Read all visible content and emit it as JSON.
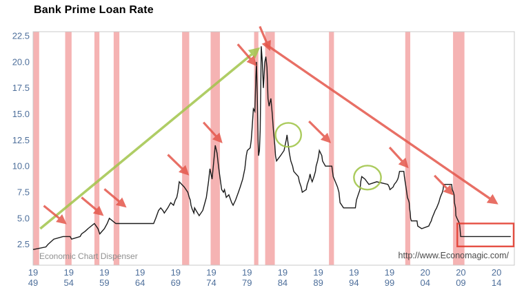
{
  "title": "Bank Prime Loan Rate",
  "footer": {
    "left": "Economic Chart Dispenser",
    "right": "http://www.Economagic.com/"
  },
  "colors": {
    "line": "#1a1a1a",
    "recession_band": "#f5b3b3",
    "plot_border": "#c9c9c9",
    "axis_label": "#4e6f9b",
    "watermark": "#8f8f8f",
    "url_text": "#4a4a4a",
    "green_annotation": "#a2c54b",
    "red_annotation": "#e4574b",
    "red_box": "#e23b2e",
    "background": "#ffffff"
  },
  "chart_data": {
    "type": "line",
    "title": "Bank Prime Loan Rate",
    "xlabel": "",
    "ylabel": "",
    "grid": false,
    "legend": "none",
    "xlim": [
      1949,
      2016.5
    ],
    "ylim": [
      0.5,
      22.9
    ],
    "yticks": [
      2.5,
      5.0,
      7.5,
      10.0,
      12.5,
      15.0,
      17.5,
      20.0,
      22.5
    ],
    "xticks": [
      {
        "x": 1949,
        "top": "19",
        "bottom": "49"
      },
      {
        "x": 1954,
        "top": "19",
        "bottom": "54"
      },
      {
        "x": 1959,
        "top": "19",
        "bottom": "59"
      },
      {
        "x": 1964,
        "top": "19",
        "bottom": "64"
      },
      {
        "x": 1969,
        "top": "19",
        "bottom": "69"
      },
      {
        "x": 1974,
        "top": "19",
        "bottom": "74"
      },
      {
        "x": 1979,
        "top": "19",
        "bottom": "79"
      },
      {
        "x": 1984,
        "top": "19",
        "bottom": "84"
      },
      {
        "x": 1989,
        "top": "19",
        "bottom": "89"
      },
      {
        "x": 1994,
        "top": "19",
        "bottom": "94"
      },
      {
        "x": 1999,
        "top": "19",
        "bottom": "99"
      },
      {
        "x": 2004,
        "top": "20",
        "bottom": "04"
      },
      {
        "x": 2009,
        "top": "20",
        "bottom": "09"
      },
      {
        "x": 2014,
        "top": "20",
        "bottom": "14"
      }
    ],
    "recessions": [
      [
        1949.0,
        1949.85
      ],
      [
        1953.5,
        1954.4
      ],
      [
        1957.6,
        1958.3
      ],
      [
        1960.3,
        1961.1
      ],
      [
        1969.9,
        1970.9
      ],
      [
        1973.9,
        1975.2
      ],
      [
        1980.0,
        1980.6
      ],
      [
        1981.55,
        1982.9
      ],
      [
        1990.5,
        1991.2
      ],
      [
        2001.2,
        2001.9
      ],
      [
        2007.9,
        2009.5
      ]
    ],
    "series": [
      {
        "name": "Bank Prime Loan Rate (percent)",
        "points": [
          [
            1949.0,
            2.0
          ],
          [
            1950.8,
            2.25
          ],
          [
            1951.1,
            2.5
          ],
          [
            1951.9,
            3.0
          ],
          [
            1953.2,
            3.25
          ],
          [
            1954.2,
            3.25
          ],
          [
            1954.4,
            3.0
          ],
          [
            1955.6,
            3.25
          ],
          [
            1955.8,
            3.5
          ],
          [
            1956.3,
            3.75
          ],
          [
            1956.7,
            4.0
          ],
          [
            1957.6,
            4.5
          ],
          [
            1958.1,
            4.0
          ],
          [
            1958.35,
            3.5
          ],
          [
            1959.0,
            4.0
          ],
          [
            1959.4,
            4.5
          ],
          [
            1959.7,
            5.0
          ],
          [
            1960.6,
            4.5
          ],
          [
            1965.9,
            4.5
          ],
          [
            1966.2,
            5.0
          ],
          [
            1966.6,
            5.75
          ],
          [
            1966.9,
            6.0
          ],
          [
            1967.2,
            5.75
          ],
          [
            1967.4,
            5.5
          ],
          [
            1967.9,
            6.0
          ],
          [
            1968.3,
            6.5
          ],
          [
            1968.7,
            6.25
          ],
          [
            1968.95,
            6.75
          ],
          [
            1969.15,
            7.0
          ],
          [
            1969.3,
            7.5
          ],
          [
            1969.5,
            8.5
          ],
          [
            1970.2,
            8.0
          ],
          [
            1970.7,
            7.5
          ],
          [
            1970.9,
            7.0
          ],
          [
            1971.05,
            6.75
          ],
          [
            1971.15,
            6.25
          ],
          [
            1971.3,
            5.9
          ],
          [
            1971.55,
            5.5
          ],
          [
            1971.65,
            6.0
          ],
          [
            1971.85,
            5.75
          ],
          [
            1972.3,
            5.25
          ],
          [
            1972.8,
            5.75
          ],
          [
            1973.0,
            6.25
          ],
          [
            1973.3,
            7.0
          ],
          [
            1973.6,
            8.5
          ],
          [
            1973.8,
            9.75
          ],
          [
            1974.1,
            8.75
          ],
          [
            1974.55,
            12.0
          ],
          [
            1974.8,
            11.25
          ],
          [
            1975.0,
            10.0
          ],
          [
            1975.2,
            9.0
          ],
          [
            1975.45,
            7.75
          ],
          [
            1975.7,
            7.5
          ],
          [
            1975.85,
            7.75
          ],
          [
            1976.1,
            7.0
          ],
          [
            1976.45,
            7.25
          ],
          [
            1976.85,
            6.5
          ],
          [
            1977.05,
            6.25
          ],
          [
            1977.4,
            6.75
          ],
          [
            1977.8,
            7.5
          ],
          [
            1978.05,
            8.0
          ],
          [
            1978.4,
            8.75
          ],
          [
            1978.7,
            9.75
          ],
          [
            1978.9,
            11.0
          ],
          [
            1979.05,
            11.5
          ],
          [
            1979.45,
            11.75
          ],
          [
            1979.6,
            12.5
          ],
          [
            1979.7,
            13.5
          ],
          [
            1979.8,
            14.5
          ],
          [
            1979.9,
            15.5
          ],
          [
            1980.1,
            15.25
          ],
          [
            1980.25,
            18.5
          ],
          [
            1980.33,
            20.0
          ],
          [
            1980.45,
            16.5
          ],
          [
            1980.55,
            12.5
          ],
          [
            1980.62,
            11.0
          ],
          [
            1980.75,
            11.5
          ],
          [
            1980.85,
            13.5
          ],
          [
            1980.92,
            17.0
          ],
          [
            1981.0,
            21.5
          ],
          [
            1981.15,
            20.0
          ],
          [
            1981.3,
            17.5
          ],
          [
            1981.5,
            20.0
          ],
          [
            1981.65,
            20.5
          ],
          [
            1981.8,
            19.5
          ],
          [
            1981.95,
            16.5
          ],
          [
            1982.1,
            15.75
          ],
          [
            1982.35,
            16.5
          ],
          [
            1982.55,
            15.0
          ],
          [
            1982.7,
            13.5
          ],
          [
            1982.9,
            12.0
          ],
          [
            1983.0,
            11.0
          ],
          [
            1983.15,
            10.5
          ],
          [
            1983.7,
            11.0
          ],
          [
            1984.2,
            11.5
          ],
          [
            1984.35,
            12.0
          ],
          [
            1984.5,
            12.5
          ],
          [
            1984.62,
            13.0
          ],
          [
            1984.8,
            12.0
          ],
          [
            1984.95,
            11.25
          ],
          [
            1985.15,
            10.5
          ],
          [
            1985.4,
            10.0
          ],
          [
            1985.55,
            9.5
          ],
          [
            1986.2,
            9.0
          ],
          [
            1986.35,
            8.5
          ],
          [
            1986.6,
            8.0
          ],
          [
            1986.75,
            7.5
          ],
          [
            1987.3,
            7.75
          ],
          [
            1987.45,
            8.25
          ],
          [
            1987.7,
            8.75
          ],
          [
            1987.85,
            9.25
          ],
          [
            1988.0,
            8.75
          ],
          [
            1988.15,
            8.5
          ],
          [
            1988.4,
            9.0
          ],
          [
            1988.6,
            9.5
          ],
          [
            1988.7,
            10.0
          ],
          [
            1988.9,
            10.5
          ],
          [
            1989.05,
            11.0
          ],
          [
            1989.15,
            11.5
          ],
          [
            1989.5,
            11.0
          ],
          [
            1989.6,
            10.5
          ],
          [
            1990.0,
            10.0
          ],
          [
            1990.9,
            10.0
          ],
          [
            1991.0,
            9.5
          ],
          [
            1991.1,
            9.0
          ],
          [
            1991.4,
            8.5
          ],
          [
            1991.7,
            8.0
          ],
          [
            1991.9,
            7.5
          ],
          [
            1992.05,
            6.5
          ],
          [
            1992.55,
            6.0
          ],
          [
            1994.2,
            6.0
          ],
          [
            1994.35,
            6.75
          ],
          [
            1994.6,
            7.25
          ],
          [
            1994.85,
            7.75
          ],
          [
            1994.95,
            8.5
          ],
          [
            1995.1,
            9.0
          ],
          [
            1995.55,
            8.75
          ],
          [
            1996.1,
            8.25
          ],
          [
            1997.2,
            8.5
          ],
          [
            1998.75,
            8.25
          ],
          [
            1998.95,
            8.0
          ],
          [
            1999.05,
            7.75
          ],
          [
            1999.5,
            8.0
          ],
          [
            1999.65,
            8.25
          ],
          [
            1999.95,
            8.5
          ],
          [
            2000.15,
            8.75
          ],
          [
            2000.25,
            9.0
          ],
          [
            2000.4,
            9.5
          ],
          [
            2001.0,
            9.5
          ],
          [
            2001.08,
            9.0
          ],
          [
            2001.18,
            8.5
          ],
          [
            2001.3,
            8.0
          ],
          [
            2001.4,
            7.5
          ],
          [
            2001.5,
            7.0
          ],
          [
            2001.65,
            6.75
          ],
          [
            2001.75,
            6.5
          ],
          [
            2001.8,
            6.0
          ],
          [
            2001.9,
            5.5
          ],
          [
            2001.95,
            5.0
          ],
          [
            2002.05,
            4.75
          ],
          [
            2002.85,
            4.75
          ],
          [
            2002.95,
            4.25
          ],
          [
            2003.5,
            4.0
          ],
          [
            2004.5,
            4.25
          ],
          [
            2004.65,
            4.5
          ],
          [
            2004.85,
            4.75
          ],
          [
            2004.95,
            5.0
          ],
          [
            2005.1,
            5.25
          ],
          [
            2005.25,
            5.5
          ],
          [
            2005.4,
            5.75
          ],
          [
            2005.6,
            6.0
          ],
          [
            2005.75,
            6.25
          ],
          [
            2005.9,
            6.5
          ],
          [
            2006.0,
            6.75
          ],
          [
            2006.1,
            7.0
          ],
          [
            2006.25,
            7.25
          ],
          [
            2006.4,
            7.5
          ],
          [
            2006.5,
            7.75
          ],
          [
            2006.55,
            8.0
          ],
          [
            2006.6,
            8.25
          ],
          [
            2007.7,
            8.25
          ],
          [
            2007.8,
            7.75
          ],
          [
            2007.95,
            7.5
          ],
          [
            2008.05,
            7.25
          ],
          [
            2008.1,
            6.5
          ],
          [
            2008.25,
            6.0
          ],
          [
            2008.3,
            5.25
          ],
          [
            2008.45,
            5.0
          ],
          [
            2008.8,
            4.5
          ],
          [
            2008.88,
            4.0
          ],
          [
            2008.97,
            3.25
          ],
          [
            2016.0,
            3.25
          ]
        ]
      }
    ],
    "annotations": {
      "trend_up_arrow": {
        "from": [
          1950.0,
          4.0
        ],
        "to": [
          1980.5,
          21.2
        ]
      },
      "trend_down_arrow": {
        "from": [
          1981.6,
          21.7
        ],
        "to": [
          2013.9,
          6.5
        ]
      },
      "peak_arrows": [
        [
          [
            1950.5,
            6.2
          ],
          [
            1953.4,
            4.6
          ]
        ],
        [
          [
            1955.8,
            7.0
          ],
          [
            1958.6,
            5.4
          ]
        ],
        [
          [
            1959.0,
            7.8
          ],
          [
            1961.8,
            6.2
          ]
        ],
        [
          [
            1967.9,
            11.1
          ],
          [
            1970.6,
            9.3
          ]
        ],
        [
          [
            1972.9,
            14.2
          ],
          [
            1975.3,
            12.4
          ]
        ],
        [
          [
            1977.7,
            21.7
          ],
          [
            1980.1,
            19.8
          ]
        ],
        [
          [
            1980.8,
            23.4
          ],
          [
            1982.1,
            21.3
          ]
        ],
        [
          [
            1987.7,
            14.3
          ],
          [
            1990.5,
            12.4
          ]
        ],
        [
          [
            1999.0,
            11.8
          ],
          [
            2001.4,
            10.0
          ]
        ],
        [
          [
            2005.3,
            9.1
          ],
          [
            2007.7,
            7.4
          ]
        ]
      ],
      "circles": [
        {
          "cx": 1984.8,
          "cy": 13.0,
          "rx": 1.8,
          "ry": 1.15
        },
        {
          "cx": 1995.9,
          "cy": 8.9,
          "rx": 1.9,
          "ry": 1.15
        }
      ],
      "box": {
        "x1": 2008.5,
        "y1": 4.5,
        "x2": 2016.4,
        "y2": 2.3
      }
    }
  }
}
